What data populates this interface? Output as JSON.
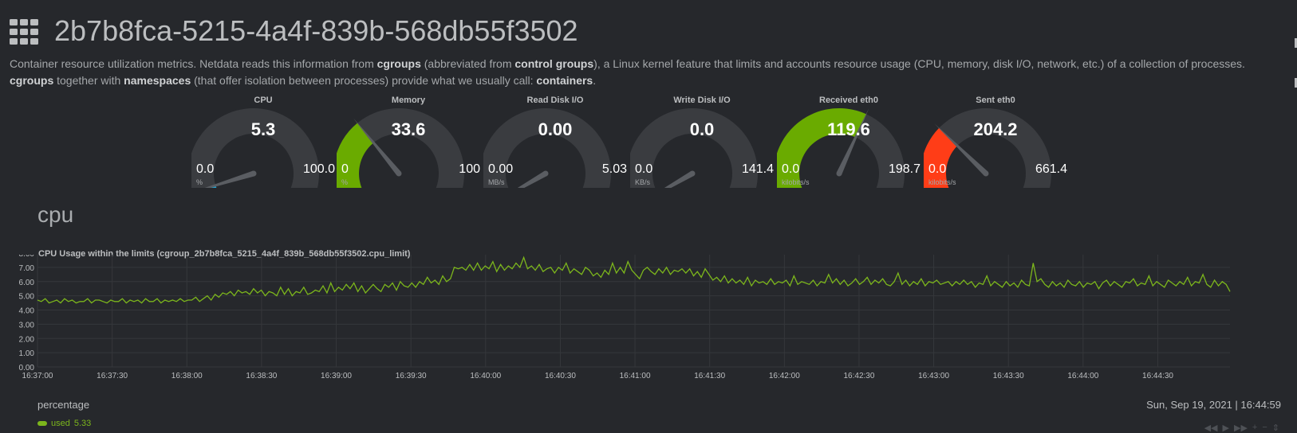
{
  "page": {
    "title": "2b7b8fca-5215-4a4f-839b-568db55f3502",
    "intro": {
      "p1": "Container resource utilization metrics. Netdata reads this information from ",
      "b1": "cgroups",
      "p2": " (abbreviated from ",
      "b2": "control groups",
      "p3": "), a Linux kernel feature that limits and accounts resource usage (CPU, memory, disk I/O, network, etc.) of a collection of processes.",
      "b3": "cgroups",
      "p4": " together with ",
      "b4": "namespaces",
      "p5": " (that offer isolation between processes) provide what we usually call: ",
      "b5": "containers",
      "p6": "."
    }
  },
  "gauges": [
    {
      "label": "CPU",
      "value": "5.3",
      "min": "0.0",
      "max": "100.0",
      "unit": "%",
      "fraction": 0.053,
      "color": "#22a7d8"
    },
    {
      "label": "Memory",
      "value": "33.6",
      "min": "0",
      "max": "100",
      "unit": "%",
      "fraction": 0.336,
      "color": "#6aab00"
    },
    {
      "label": "Read Disk I/O",
      "value": "0.00",
      "min": "0.00",
      "max": "5.03",
      "unit": "MB/s",
      "fraction": 0.0,
      "color": "#22a7d8"
    },
    {
      "label": "Write Disk I/O",
      "value": "0.0",
      "min": "0.0",
      "max": "141.4",
      "unit": "KB/s",
      "fraction": 0.0,
      "color": "#22a7d8"
    },
    {
      "label": "Received eth0",
      "value": "119.6",
      "min": "0.0",
      "max": "198.7",
      "unit": "kilobits/s",
      "fraction": 0.602,
      "color": "#6aab00"
    },
    {
      "label": "Sent eth0",
      "value": "204.2",
      "min": "0.0",
      "max": "661.4",
      "unit": "kilobits/s",
      "fraction": 0.309,
      "color": "#ff3d17"
    }
  ],
  "section": {
    "title": "cpu"
  },
  "chart_data": {
    "type": "line",
    "title": "CPU Usage within the limits (cgroup_2b7b8fca_5215_4a4f_839b_568db55f3502.cpu_limit)",
    "ylabel": "percentage",
    "ylim": [
      0,
      8
    ],
    "yticks": [
      "8.00",
      "7.00",
      "6.00",
      "5.00",
      "4.00",
      "3.00",
      "2.00",
      "1.00",
      "0.00"
    ],
    "xticks": [
      "16:37:00",
      "16:37:30",
      "16:38:00",
      "16:38:30",
      "16:39:00",
      "16:39:30",
      "16:40:00",
      "16:40:30",
      "16:41:00",
      "16:41:30",
      "16:42:00",
      "16:42:30",
      "16:43:00",
      "16:43:30",
      "16:44:00",
      "16:44:30"
    ],
    "x_start": "16:37:00",
    "x_end": "16:44:59",
    "grid": true,
    "series": [
      {
        "name": "used",
        "color": "#7cb61c",
        "values": [
          4.7,
          4.6,
          4.8,
          4.5,
          4.6,
          4.7,
          4.5,
          4.8,
          4.6,
          4.7,
          4.5,
          4.6,
          4.6,
          4.8,
          4.5,
          4.7,
          4.7,
          4.6,
          4.5,
          4.7,
          4.6,
          4.6,
          4.8,
          4.5,
          4.7,
          4.6,
          4.7,
          4.5,
          4.8,
          4.6,
          4.6,
          4.8,
          4.5,
          4.7,
          4.6,
          4.7,
          4.6,
          4.8,
          4.6,
          4.7,
          4.7,
          4.9,
          4.6,
          4.8,
          5.0,
          4.7,
          5.1,
          4.9,
          5.2,
          5.1,
          5.3,
          5.0,
          5.4,
          5.2,
          5.3,
          5.1,
          5.5,
          5.2,
          5.4,
          5.0,
          5.3,
          5.2,
          5.0,
          5.6,
          5.1,
          5.5,
          5.0,
          5.3,
          5.2,
          5.6,
          5.1,
          5.2,
          5.4,
          5.3,
          5.7,
          5.2,
          5.9,
          5.3,
          5.6,
          5.4,
          5.8,
          5.5,
          5.9,
          5.3,
          5.7,
          5.2,
          5.5,
          5.8,
          5.5,
          5.3,
          5.8,
          5.6,
          5.9,
          5.4,
          6.0,
          5.7,
          5.6,
          5.9,
          5.6,
          6.0,
          5.8,
          6.3,
          5.9,
          6.1,
          5.8,
          6.4,
          6.0,
          6.2,
          7.0,
          6.9,
          7.0,
          6.8,
          7.2,
          6.8,
          7.3,
          6.8,
          7.1,
          6.9,
          7.4,
          6.7,
          7.2,
          6.8,
          7.1,
          6.9,
          7.3,
          7.0,
          7.7,
          6.9,
          7.1,
          6.8,
          7.2,
          6.7,
          6.9,
          7.0,
          6.6,
          7.0,
          6.8,
          7.3,
          6.6,
          6.9,
          6.7,
          6.5,
          7.0,
          6.8,
          6.4,
          6.6,
          6.3,
          6.8,
          6.5,
          7.3,
          6.6,
          7.0,
          6.6,
          7.4,
          6.8,
          6.5,
          6.2,
          6.8,
          7.0,
          6.7,
          6.5,
          6.9,
          6.6,
          7.0,
          6.5,
          6.8,
          6.7,
          6.9,
          6.6,
          6.9,
          6.4,
          6.7,
          6.3,
          6.9,
          6.5,
          6.1,
          6.3,
          6.0,
          6.4,
          5.9,
          6.2,
          5.9,
          6.1,
          5.8,
          6.3,
          5.7,
          6.1,
          5.9,
          6.0,
          5.8,
          6.2,
          5.8,
          6.0,
          5.9,
          6.1,
          5.7,
          6.4,
          5.8,
          6.0,
          5.9,
          5.8,
          6.1,
          5.7,
          6.0,
          5.9,
          6.5,
          5.9,
          6.2,
          5.8,
          6.1,
          5.7,
          5.9,
          6.2,
          5.8,
          6.0,
          6.3,
          5.8,
          6.1,
          5.9,
          6.2,
          5.8,
          5.7,
          6.0,
          6.6,
          5.8,
          6.1,
          5.7,
          6.0,
          5.8,
          6.2,
          5.7,
          6.0,
          5.9,
          6.1,
          5.8,
          5.9,
          6.0,
          5.7,
          6.0,
          5.8,
          6.1,
          5.8,
          6.0,
          5.6,
          5.9,
          5.8,
          6.4,
          5.7,
          6.0,
          5.8,
          5.6,
          6.0,
          5.7,
          5.9,
          5.6,
          6.1,
          5.8,
          5.7,
          7.3,
          6.0,
          6.2,
          5.8,
          5.6,
          6.0,
          5.7,
          5.9,
          5.6,
          6.1,
          5.8,
          5.7,
          6.0,
          5.6,
          5.9,
          5.8,
          6.0,
          5.5,
          5.9,
          6.1,
          5.7,
          6.0,
          5.8,
          5.6,
          6.0,
          5.9,
          6.2,
          5.7,
          5.9,
          5.8,
          6.4,
          5.7,
          6.0,
          5.8,
          5.6,
          6.1,
          5.9,
          5.7,
          6.0,
          5.8,
          6.3,
          5.7,
          6.0,
          5.9,
          6.5,
          5.8,
          5.6,
          6.1,
          5.7,
          6.0,
          5.8,
          5.3
        ]
      }
    ]
  },
  "footer": {
    "units": "percentage",
    "timestamp": "Sun, Sep 19, 2021 | 16:44:59",
    "legend_label": "used",
    "legend_value": "5.33",
    "toolbar": [
      "◀◀",
      "▶",
      "▶▶",
      "+",
      "−",
      "⇕"
    ]
  }
}
